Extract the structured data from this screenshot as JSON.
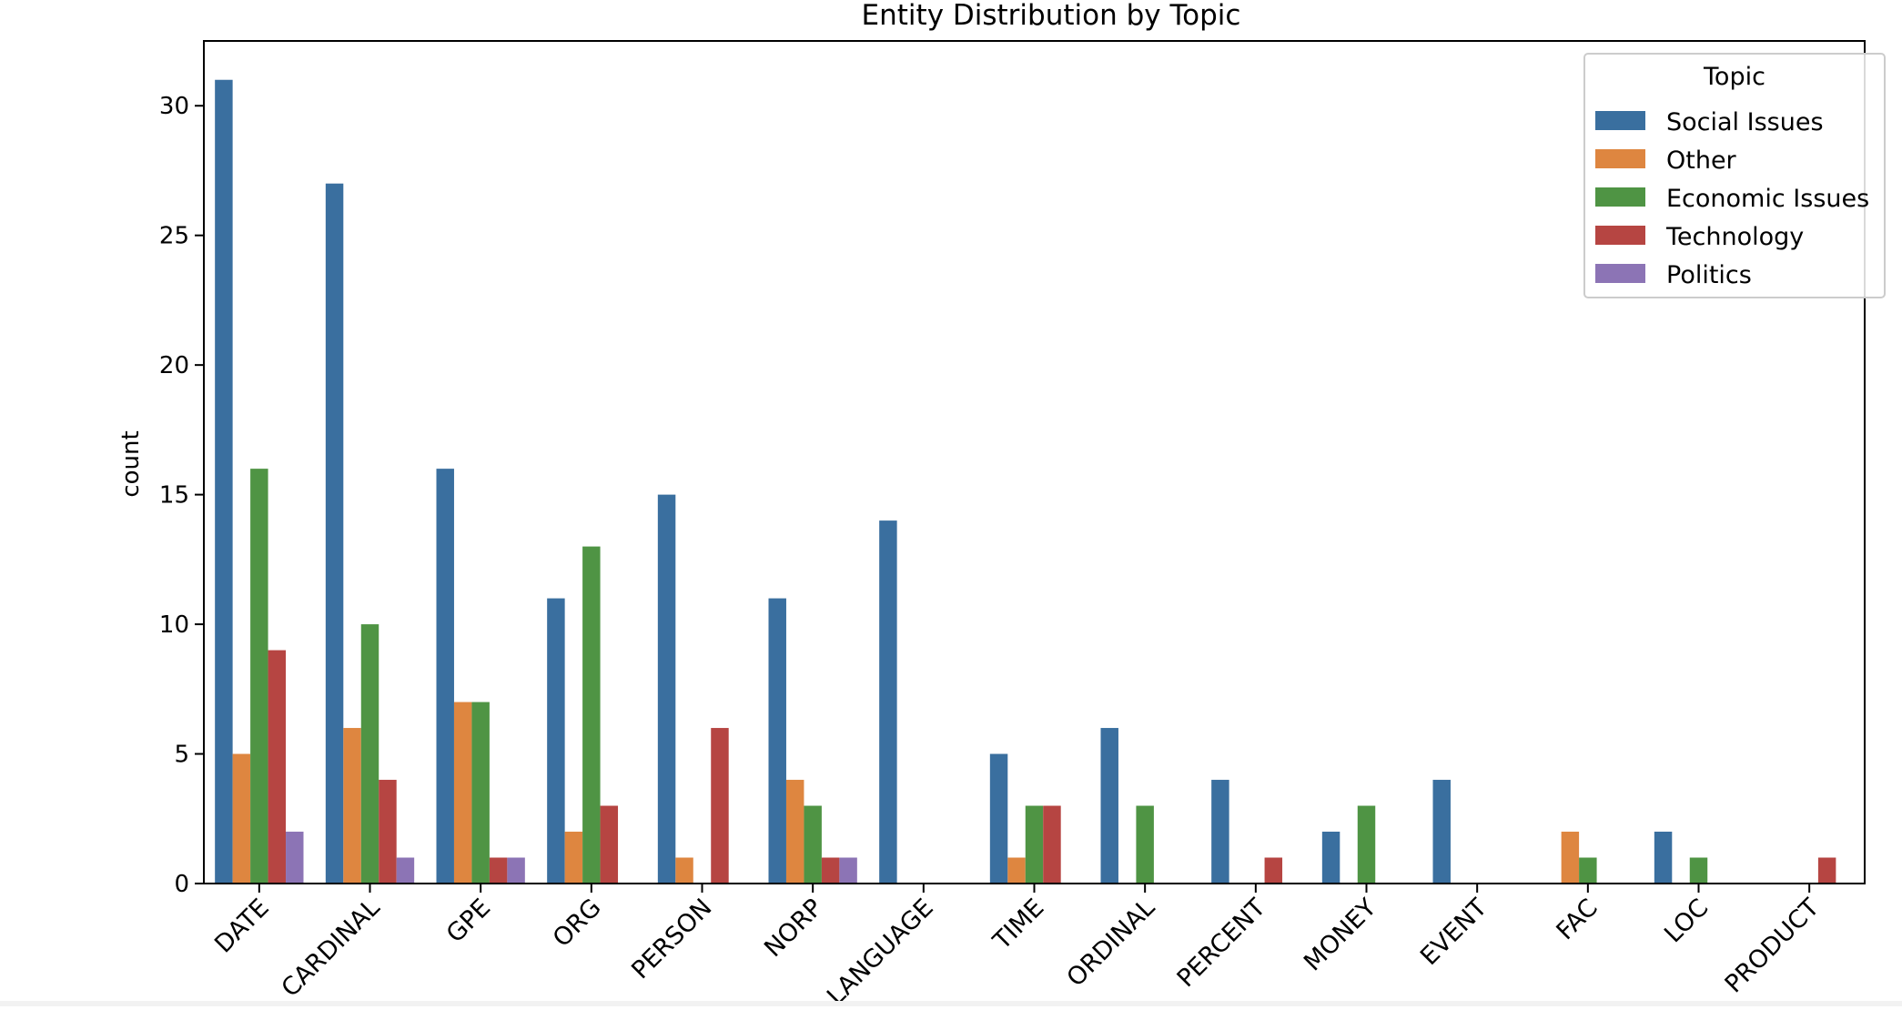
{
  "chart_data": {
    "type": "bar",
    "title": "Entity Distribution by Topic",
    "xlabel": "",
    "ylabel": "count",
    "ylim": [
      0,
      32.5
    ],
    "yticks": [
      0,
      5,
      10,
      15,
      20,
      25,
      30
    ],
    "grid": false,
    "legend": {
      "title": "Topic",
      "placement": "top-right"
    },
    "categories": [
      "DATE",
      "CARDINAL",
      "GPE",
      "ORG",
      "PERSON",
      "NORP",
      "LANGUAGE",
      "TIME",
      "ORDINAL",
      "PERCENT",
      "MONEY",
      "EVENT",
      "FAC",
      "LOC",
      "PRODUCT"
    ],
    "series": [
      {
        "name": "Social Issues",
        "color": "#3a6f9f",
        "values": [
          31,
          27,
          16,
          11,
          15,
          11,
          14,
          5,
          6,
          4,
          2,
          4,
          0,
          2,
          0
        ]
      },
      {
        "name": "Other",
        "color": "#de8640",
        "values": [
          5,
          6,
          7,
          2,
          1,
          4,
          0,
          1,
          0,
          0,
          0,
          0,
          2,
          0,
          0
        ]
      },
      {
        "name": "Economic Issues",
        "color": "#4f9444",
        "values": [
          16,
          10,
          7,
          13,
          0,
          3,
          0,
          3,
          3,
          0,
          3,
          0,
          1,
          1,
          0
        ]
      },
      {
        "name": "Technology",
        "color": "#b64542",
        "values": [
          9,
          4,
          1,
          3,
          6,
          1,
          0,
          3,
          0,
          1,
          0,
          0,
          0,
          0,
          1
        ]
      },
      {
        "name": "Politics",
        "color": "#8c74b5",
        "values": [
          2,
          1,
          1,
          0,
          0,
          1,
          0,
          0,
          0,
          0,
          0,
          0,
          0,
          0,
          0
        ]
      }
    ]
  }
}
